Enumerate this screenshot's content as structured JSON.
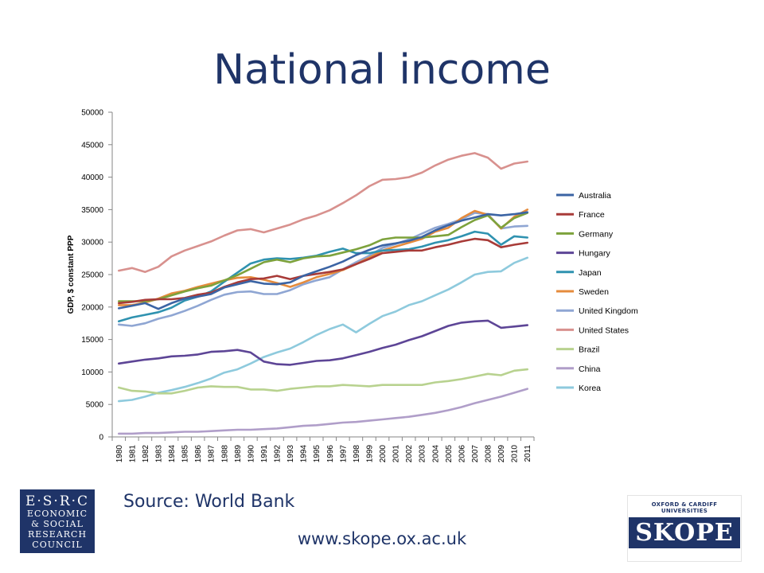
{
  "title": "National income",
  "source": "Source: World Bank",
  "url": "www.skope.ox.ac.uk",
  "logos": {
    "esrc": [
      "E·S·R·C",
      "ECONOMIC",
      "& SOCIAL",
      "RESEARCH",
      "COUNCIL"
    ],
    "skope_university": "OXFORD & CARDIFF UNIVERSITIES",
    "skope_word": "SKOPE"
  },
  "chart_data": {
    "type": "line",
    "title": "",
    "xlabel": "",
    "ylabel": "GDP, $ constant PPP",
    "ylim": [
      0,
      50000
    ],
    "yticks": [
      0,
      5000,
      10000,
      15000,
      20000,
      25000,
      30000,
      35000,
      40000,
      45000,
      50000
    ],
    "categories": [
      "1980",
      "1981",
      "1982",
      "1983",
      "1984",
      "1985",
      "1986",
      "1987",
      "1988",
      "1989",
      "1990",
      "1991",
      "1992",
      "1993",
      "1994",
      "1995",
      "1996",
      "1997",
      "1998",
      "1999",
      "2000",
      "2001",
      "2002",
      "2003",
      "2004",
      "2005",
      "2006",
      "2007",
      "2008",
      "2009",
      "2010",
      "2011"
    ],
    "legend_position": "right",
    "series": [
      {
        "name": "Australia",
        "color": "#3b64a4",
        "values": [
          19800,
          20200,
          20600,
          19700,
          20600,
          21300,
          21600,
          22000,
          23000,
          23500,
          24000,
          23600,
          23500,
          23800,
          24800,
          25500,
          26200,
          27000,
          28000,
          28800,
          29500,
          29800,
          30200,
          30800,
          31800,
          32600,
          33300,
          33800,
          34300,
          34100,
          34300,
          34600
        ]
      },
      {
        "name": "France",
        "color": "#a83b38",
        "values": [
          20600,
          20800,
          21100,
          21200,
          21200,
          21400,
          21900,
          22200,
          23100,
          23800,
          24300,
          24400,
          24800,
          24300,
          24800,
          25100,
          25400,
          25800,
          26600,
          27400,
          28300,
          28500,
          28700,
          28700,
          29200,
          29600,
          30100,
          30500,
          30300,
          29200,
          29600,
          29900
        ]
      },
      {
        "name": "Germany",
        "color": "#7da23c",
        "values": [
          20900,
          20900,
          20900,
          21200,
          21800,
          22400,
          22900,
          23300,
          24100,
          24900,
          25900,
          26900,
          27300,
          26900,
          27500,
          27800,
          27900,
          28400,
          28900,
          29500,
          30400,
          30700,
          30700,
          30700,
          30900,
          31100,
          32300,
          33400,
          34100,
          32200,
          33700,
          34500
        ]
      },
      {
        "name": "Hungary",
        "color": "#5d4596",
        "values": [
          11300,
          11600,
          11900,
          12100,
          12400,
          12500,
          12700,
          13100,
          13200,
          13400,
          13000,
          11600,
          11200,
          11100,
          11400,
          11700,
          11800,
          12100,
          12600,
          13100,
          13700,
          14200,
          14900,
          15500,
          16300,
          17100,
          17600,
          17800,
          17900,
          16800,
          17000,
          17200
        ]
      },
      {
        "name": "Japan",
        "color": "#2f92b0",
        "values": [
          17800,
          18400,
          18800,
          19200,
          19900,
          21000,
          21600,
          22400,
          23900,
          25300,
          26700,
          27300,
          27500,
          27400,
          27600,
          27900,
          28500,
          29000,
          28300,
          28300,
          28700,
          28800,
          28900,
          29300,
          29900,
          30300,
          30900,
          31600,
          31300,
          29600,
          30900,
          30700
        ]
      },
      {
        "name": "Sweden",
        "color": "#e58b3c",
        "values": [
          20300,
          20300,
          20700,
          21300,
          22100,
          22500,
          23100,
          23600,
          24100,
          24500,
          24600,
          24200,
          23700,
          23100,
          23800,
          24600,
          25100,
          25700,
          26600,
          27600,
          28700,
          29300,
          29900,
          30500,
          31600,
          32200,
          33700,
          34800,
          34200,
          32100,
          33900,
          35000
        ]
      },
      {
        "name": "United Kingdom",
        "color": "#8fa6d3",
        "values": [
          17300,
          17100,
          17500,
          18200,
          18700,
          19400,
          20200,
          21100,
          21900,
          22300,
          22400,
          22000,
          22000,
          22600,
          23500,
          24100,
          24600,
          25800,
          26900,
          27900,
          29100,
          29700,
          30400,
          31300,
          32200,
          32800,
          33500,
          34500,
          34300,
          32100,
          32400,
          32500
        ]
      },
      {
        "name": "United States",
        "color": "#d8918e",
        "values": [
          25600,
          26000,
          25400,
          26200,
          27800,
          28700,
          29400,
          30100,
          31000,
          31800,
          32000,
          31500,
          32100,
          32700,
          33500,
          34100,
          34900,
          36000,
          37200,
          38600,
          39600,
          39700,
          40000,
          40700,
          41800,
          42700,
          43300,
          43700,
          43000,
          41300,
          42100,
          42400
        ]
      },
      {
        "name": "Brazil",
        "color": "#b8d28f",
        "values": [
          7600,
          7100,
          7000,
          6700,
          6700,
          7100,
          7600,
          7800,
          7700,
          7700,
          7300,
          7300,
          7100,
          7400,
          7600,
          7800,
          7800,
          8000,
          7900,
          7800,
          8000,
          8000,
          8000,
          8000,
          8400,
          8600,
          8900,
          9300,
          9700,
          9500,
          10200,
          10400
        ]
      },
      {
        "name": "China",
        "color": "#b09ec9",
        "values": [
          500,
          500,
          600,
          600,
          700,
          800,
          800,
          900,
          1000,
          1100,
          1100,
          1200,
          1300,
          1500,
          1700,
          1800,
          2000,
          2200,
          2300,
          2500,
          2700,
          2900,
          3100,
          3400,
          3700,
          4100,
          4600,
          5200,
          5700,
          6200,
          6800,
          7400
        ]
      },
      {
        "name": "Korea",
        "color": "#8ecadd",
        "values": [
          5500,
          5700,
          6200,
          6800,
          7200,
          7700,
          8300,
          9000,
          9900,
          10400,
          11300,
          12300,
          13000,
          13600,
          14600,
          15700,
          16600,
          17300,
          16100,
          17400,
          18600,
          19300,
          20300,
          20900,
          21800,
          22700,
          23800,
          25000,
          25400,
          25500,
          26800,
          27600
        ]
      }
    ]
  }
}
